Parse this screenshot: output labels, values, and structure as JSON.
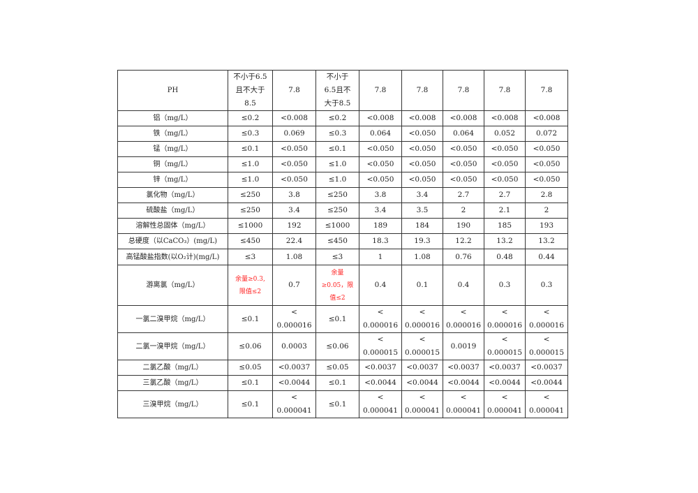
{
  "highlight_color": "#ff2020",
  "table": {
    "rows": [
      {
        "cells": [
          "PH",
          "不小于6.5\n且不大于\n8.5",
          "7.8",
          "不小于\n6.5且不\n大于8.5",
          "7.8",
          "7.8",
          "7.8",
          "7.8",
          "7.8"
        ]
      },
      {
        "cells": [
          "铝（mg/L）",
          "≤0.2",
          "<0.008",
          "≤0.2",
          "<0.008",
          "<0.008",
          "<0.008",
          "<0.008",
          "<0.008"
        ]
      },
      {
        "cells": [
          "铁（mg/L）",
          "≤0.3",
          "0.069",
          "≤0.3",
          "0.064",
          "<0.050",
          "0.064",
          "0.052",
          "0.072"
        ]
      },
      {
        "cells": [
          "锰（mg/L）",
          "≤0.1",
          "<0.050",
          "≤0.1",
          "<0.050",
          "<0.050",
          "<0.050",
          "<0.050",
          "<0.050"
        ]
      },
      {
        "cells": [
          "铜（mg/L）",
          "≤1.0",
          "<0.050",
          "≤1.0",
          "<0.050",
          "<0.050",
          "<0.050",
          "<0.050",
          "<0.050"
        ]
      },
      {
        "cells": [
          "锌（mg/L）",
          "≤1.0",
          "<0.050",
          "≤1.0",
          "<0.050",
          "<0.050",
          "<0.050",
          "<0.050",
          "<0.050"
        ]
      },
      {
        "cells": [
          "氯化物（mg/L）",
          "≤250",
          "3.8",
          "≤250",
          "3.8",
          "3.4",
          "2.7",
          "2.7",
          "2.8"
        ]
      },
      {
        "cells": [
          "硫酸盐（mg/L）",
          "≤250",
          "3.4",
          "≤250",
          "3.4",
          "3.5",
          "2",
          "2.1",
          "2"
        ]
      },
      {
        "cells": [
          "溶解性总固体（mg/L）",
          "≤1000",
          "192",
          "≤1000",
          "189",
          "184",
          "190",
          "185",
          "193"
        ]
      },
      {
        "cells": [
          "总硬度（以CaCO₃）(mg/L)",
          "≤450",
          "22.4",
          "≤450",
          "18.3",
          "19.3",
          "12.2",
          "13.2",
          "13.2"
        ]
      },
      {
        "cells": [
          "高锰酸盐指数(以O₂计)(mg/L)",
          "≤3",
          "1.08",
          "≤3",
          "1",
          "1.08",
          "0.76",
          "0.48",
          "0.44"
        ]
      },
      {
        "cells": [
          "游离氯（mg/L）",
          "余量≥0.3,\n限值≤2",
          "0.7",
          "余量\n≥0.05，限\n值≤2",
          "0.4",
          "0.1",
          "0.4",
          "0.3",
          "0.3"
        ],
        "red": [
          1,
          3
        ]
      },
      {
        "cells": [
          "一氯二溴甲烷（mg/L）",
          "≤0.1",
          "<\n0.000016",
          "≤0.1",
          "<\n0.000016",
          "<\n0.000016",
          "<\n0.000016",
          "<\n0.000016",
          "<\n0.000016"
        ]
      },
      {
        "cells": [
          "二氯一溴甲烷（mg/L）",
          "≤0.06",
          "0.0003",
          "≤0.06",
          "<\n0.000015",
          "<\n0.000015",
          "0.0019",
          "<\n0.000015",
          "<\n0.000015"
        ]
      },
      {
        "cells": [
          "二氯乙酸（mg/L）",
          "≤0.05",
          "<0.0037",
          "≤0.05",
          "<0.0037",
          "<0.0037",
          "<0.0037",
          "<0.0037",
          "<0.0037"
        ]
      },
      {
        "cells": [
          "三氯乙酸（mg/L）",
          "≤0.1",
          "<0.0044",
          "≤0.1",
          "<0.0044",
          "<0.0044",
          "<0.0044",
          "<0.0044",
          "<0.0044"
        ]
      },
      {
        "cells": [
          "三溴甲烷（mg/L）",
          "≤0.1",
          "<\n0.000041",
          "≤0.1",
          "<\n0.000041",
          "<\n0.000041",
          "<\n0.000041",
          "<\n0.000041",
          "<\n0.000041"
        ]
      }
    ]
  }
}
